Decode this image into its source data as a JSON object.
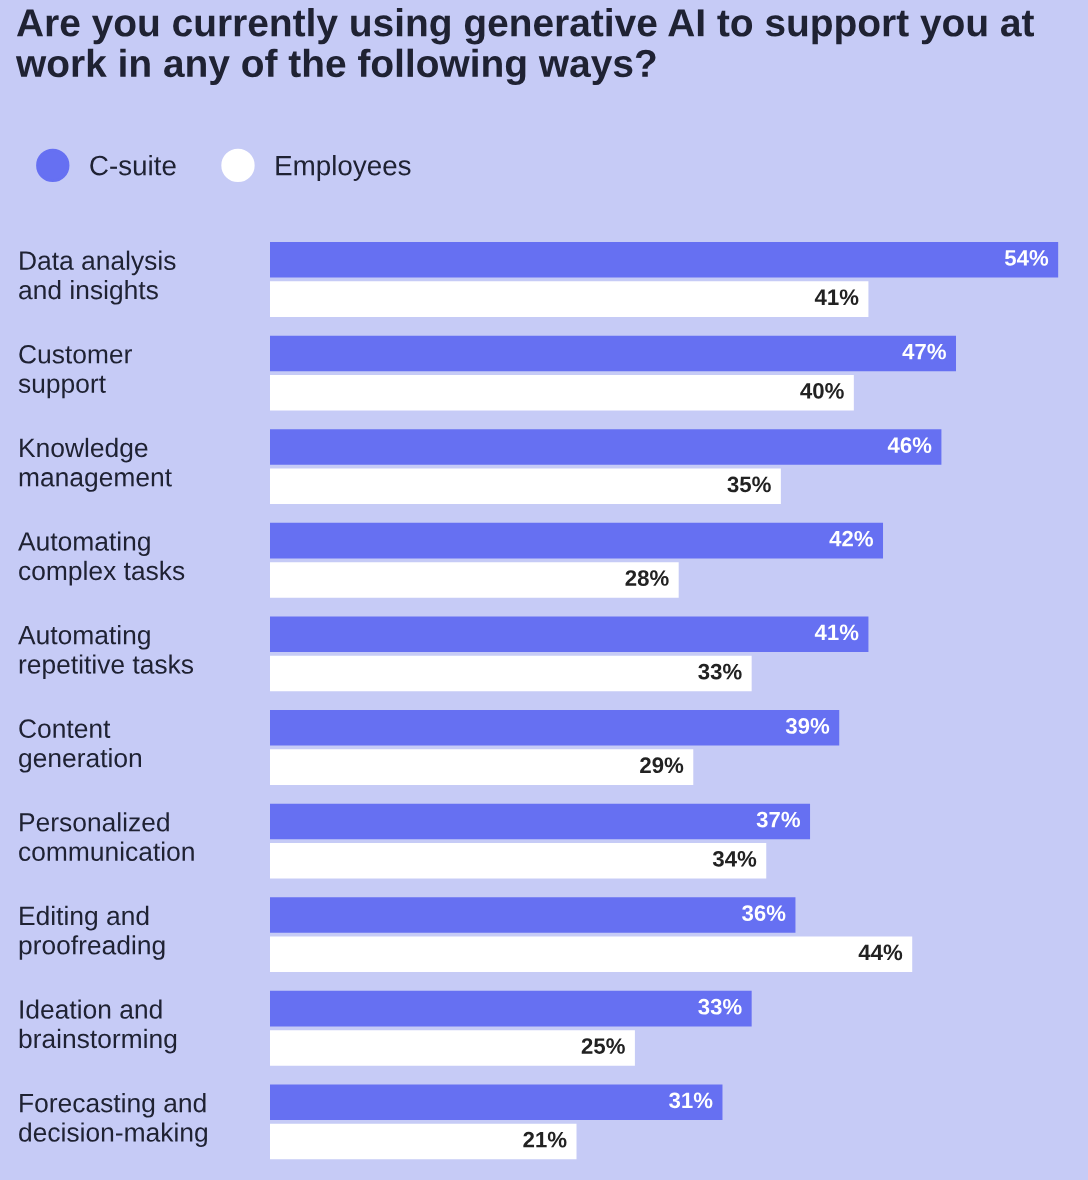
{
  "chart_data": {
    "type": "bar",
    "orientation": "horizontal",
    "title": "Are you currently using generative AI to support you at work in any of the following ways?",
    "categories": [
      "Data analysis\nand insights",
      "Customer\nsupport",
      "Knowledge\nmanagement",
      "Automating\ncomplex tasks",
      "Automating\nrepetitive tasks",
      "Content\ngeneration",
      "Personalized\ncommunication",
      "Editing and\nproofreading",
      "Ideation and\nbrainstorming",
      "Forecasting and\ndecision-making"
    ],
    "series": [
      {
        "name": "C-suite",
        "color": "#6670f2",
        "values": [
          54,
          47,
          46,
          42,
          41,
          39,
          37,
          36,
          33,
          31
        ],
        "value_labels": [
          "54%",
          "47%",
          "46%",
          "42%",
          "41%",
          "39%",
          "37%",
          "36%",
          "33%",
          "31%"
        ]
      },
      {
        "name": "Employees",
        "color": "#ffffff",
        "values": [
          41,
          40,
          35,
          28,
          33,
          29,
          34,
          44,
          25,
          21
        ],
        "value_labels": [
          "41%",
          "40%",
          "35%",
          "28%",
          "33%",
          "29%",
          "34%",
          "44%",
          "25%",
          "21%"
        ]
      }
    ],
    "legend": "top left"
  }
}
